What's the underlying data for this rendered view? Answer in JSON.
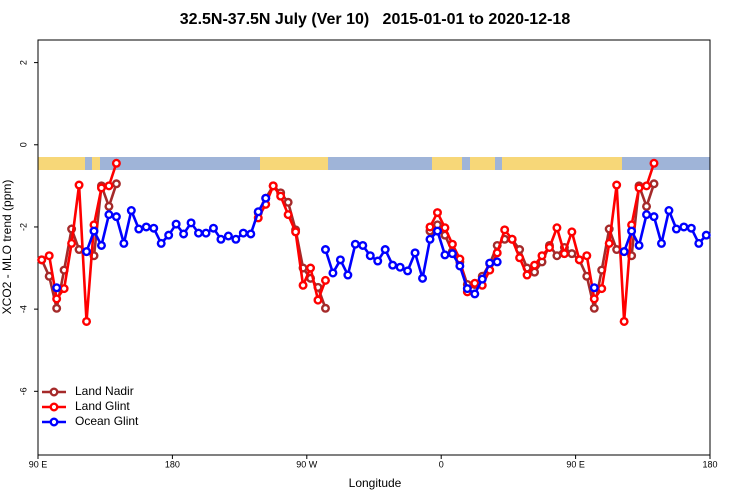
{
  "chart_data": {
    "type": "line",
    "title": "32.5N-37.5N July (Ver 10)   2015-01-01 to 2020-12-18",
    "x_label": "Longitude",
    "y_label": "XCO2 - MLO trend (ppm)",
    "xlim": [
      90,
      540
    ],
    "ylim": [
      -7.55,
      2.55
    ],
    "xticks": [
      {
        "value": 90,
        "label": "90 E"
      },
      {
        "value": 180,
        "label": "180"
      },
      {
        "value": 270,
        "label": "90 W"
      },
      {
        "value": 360,
        "label": "0"
      },
      {
        "value": 450,
        "label": "90 E"
      },
      {
        "value": 540,
        "label": "180"
      }
    ],
    "yticks": [
      2,
      0,
      -2,
      -4,
      -6
    ],
    "legend": "bottomleft",
    "x": [
      92.5,
      97.5,
      102.5,
      107.5,
      112.5,
      117.5,
      122.5,
      127.5,
      132.5,
      137.5,
      142.5,
      147.5,
      152.5,
      157.5,
      162.5,
      167.5,
      172.5,
      177.5,
      182.5,
      187.5,
      192.5,
      197.5,
      202.5,
      207.5,
      212.5,
      217.5,
      222.5,
      227.5,
      232.5,
      237.5,
      242.5,
      247.5,
      252.5,
      257.5,
      262.5,
      267.5,
      272.5,
      277.5,
      282.5,
      287.5,
      292.5,
      297.5,
      302.5,
      307.5,
      312.5,
      317.5,
      322.5,
      327.5,
      332.5,
      337.5,
      342.5,
      347.5,
      352.5,
      357.5,
      362.5,
      367.5,
      372.5,
      377.5,
      382.5,
      387.5,
      392.5,
      397.5,
      402.5,
      407.5,
      412.5,
      417.5,
      422.5,
      427.5,
      432.5,
      437.5,
      442.5,
      447.5,
      452.5,
      457.5,
      462.5,
      467.5,
      472.5,
      477.5,
      482.5,
      487.5,
      492.5,
      497.5,
      502.5,
      507.5,
      512.5,
      517.5,
      522.5,
      527.5,
      532.5,
      537.5
    ],
    "series": [
      {
        "name": "Land Nadir",
        "color": "#a52a2a",
        "values": [
          -2.8,
          -3.2,
          -3.98,
          -3.05,
          -2.05,
          -2.55,
          -2.6,
          -2.7,
          -1.0,
          -1.5,
          -0.95,
          null,
          null,
          null,
          null,
          null,
          null,
          null,
          null,
          null,
          null,
          null,
          null,
          null,
          null,
          null,
          null,
          null,
          null,
          -1.65,
          -1.3,
          -1.0,
          -1.17,
          -1.4,
          -2.07,
          -3.0,
          -3.25,
          -3.47,
          -3.98,
          null,
          null,
          null,
          null,
          null,
          null,
          null,
          null,
          null,
          null,
          null,
          null,
          null,
          -2.1,
          -1.95,
          -2.2,
          -2.6,
          -2.85,
          -3.4,
          -3.4,
          -3.2,
          -2.9,
          -2.45,
          -2.3,
          -2.3,
          -2.55,
          -3.0,
          -3.1,
          -2.85,
          -2.45,
          -2.7,
          -2.5,
          -2.65,
          -2.8,
          -3.2,
          -3.98,
          -3.05,
          -2.05,
          -2.55,
          -2.6,
          -2.7,
          -1.0,
          -1.5,
          -0.95,
          null,
          null,
          null,
          null,
          null,
          null,
          null
        ]
      },
      {
        "name": "Land Glint",
        "color": "#ff0000",
        "values": [
          -2.8,
          -2.7,
          -3.75,
          -3.5,
          -2.4,
          -0.98,
          -4.3,
          -1.95,
          -1.05,
          -1.0,
          -0.45,
          null,
          null,
          null,
          null,
          null,
          null,
          null,
          null,
          null,
          null,
          null,
          null,
          null,
          null,
          null,
          null,
          null,
          null,
          -1.78,
          -1.45,
          -1.0,
          -1.25,
          -1.7,
          -2.12,
          -3.42,
          -3.0,
          -3.78,
          -3.3,
          null,
          null,
          null,
          null,
          null,
          null,
          null,
          null,
          null,
          null,
          null,
          null,
          null,
          -2.0,
          -1.65,
          -2.02,
          -2.42,
          -2.78,
          -3.58,
          -3.37,
          -3.42,
          -3.05,
          -2.63,
          -2.07,
          -2.3,
          -2.75,
          -3.17,
          -2.93,
          -2.7,
          -2.5,
          -2.02,
          -2.65,
          -2.12,
          -2.8,
          -2.7,
          -3.75,
          -3.5,
          -2.4,
          -0.98,
          -4.3,
          -1.95,
          -1.05,
          -1.0,
          -0.45,
          null,
          null,
          null,
          null,
          null,
          null,
          null
        ]
      },
      {
        "name": "Ocean Glint",
        "color": "#0000ff",
        "values": [
          null,
          null,
          -3.48,
          null,
          null,
          null,
          -2.6,
          -2.1,
          -2.45,
          -1.7,
          -1.75,
          -2.4,
          -1.6,
          -2.05,
          -2.0,
          -2.03,
          -2.4,
          -2.2,
          -1.93,
          -2.17,
          -1.9,
          -2.15,
          -2.15,
          -2.03,
          -2.3,
          -2.22,
          -2.3,
          -2.15,
          -2.17,
          -1.63,
          -1.3,
          null,
          null,
          null,
          null,
          null,
          null,
          null,
          -2.55,
          -3.12,
          -2.8,
          -3.17,
          -2.42,
          -2.45,
          -2.7,
          -2.83,
          -2.55,
          -2.93,
          -2.98,
          -3.07,
          -2.63,
          -3.25,
          -2.3,
          -2.1,
          -2.68,
          -2.65,
          -2.95,
          -3.5,
          -3.63,
          -3.27,
          -2.88,
          -2.85,
          null,
          null,
          null,
          null,
          null,
          null,
          null,
          null,
          null,
          null,
          null,
          null,
          -3.48,
          null,
          null,
          null,
          -2.6,
          -2.1,
          -2.45,
          -1.7,
          -1.75,
          -2.4,
          -1.6,
          -2.05,
          -2.0,
          -2.03,
          -2.4,
          -2.2
        ]
      }
    ]
  }
}
